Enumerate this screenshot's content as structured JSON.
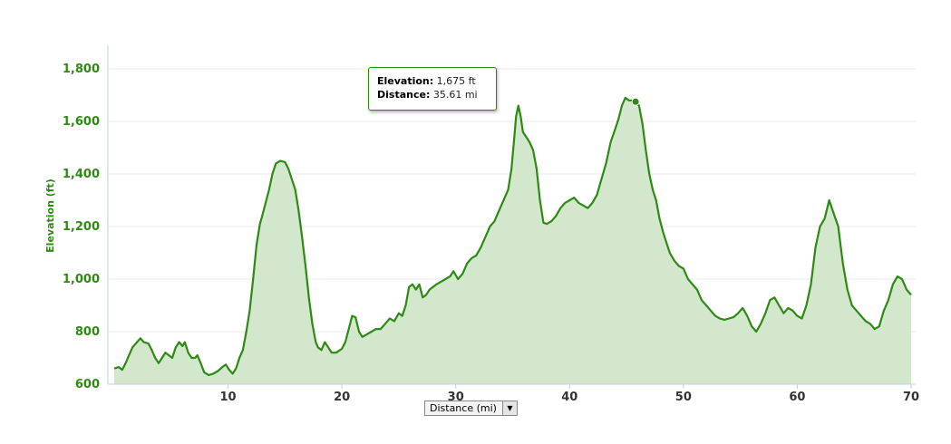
{
  "chart_data": {
    "type": "area",
    "xlabel": "",
    "ylabel": "Elevation (ft)",
    "x_unit_selector": "Distance (mi)",
    "xlim": [
      0,
      70
    ],
    "ylim": [
      600,
      1800
    ],
    "x_ticks": [
      10,
      20,
      30,
      40,
      50,
      60,
      70
    ],
    "y_ticks": [
      600,
      800,
      1000,
      1200,
      1400,
      1600,
      1800
    ],
    "y_tick_labels": [
      "600",
      "800",
      "1,000",
      "1,200",
      "1,400",
      "1,600",
      "1,800"
    ],
    "grid": "horizontal",
    "colors": {
      "line": "#2d8a12",
      "fill": "#d3e7cc",
      "grid": "#e8e8e8",
      "axis": "#c0d0e0"
    },
    "tooltip": {
      "elevation_label": "Elevation:",
      "elevation_value": "1,675 ft",
      "distance_label": "Distance:",
      "distance_value": "35.61 mi",
      "x": 35.61,
      "y": 1675
    },
    "series": [
      {
        "points": [
          [
            0,
            660
          ],
          [
            0.4,
            665
          ],
          [
            0.7,
            655
          ],
          [
            1.0,
            680
          ],
          [
            1.3,
            710
          ],
          [
            1.6,
            740
          ],
          [
            2.0,
            760
          ],
          [
            2.3,
            775
          ],
          [
            2.6,
            760
          ],
          [
            3.0,
            755
          ],
          [
            3.3,
            730
          ],
          [
            3.6,
            700
          ],
          [
            3.9,
            680
          ],
          [
            4.2,
            700
          ],
          [
            4.5,
            720
          ],
          [
            4.8,
            710
          ],
          [
            5.1,
            700
          ],
          [
            5.4,
            740
          ],
          [
            5.7,
            760
          ],
          [
            6.0,
            745
          ],
          [
            6.2,
            760
          ],
          [
            6.5,
            720
          ],
          [
            6.8,
            700
          ],
          [
            7.1,
            700
          ],
          [
            7.3,
            710
          ],
          [
            7.6,
            680
          ],
          [
            7.9,
            645
          ],
          [
            8.3,
            635
          ],
          [
            8.7,
            640
          ],
          [
            9.1,
            650
          ],
          [
            9.5,
            665
          ],
          [
            9.8,
            675
          ],
          [
            10.1,
            655
          ],
          [
            10.4,
            640
          ],
          [
            10.7,
            660
          ],
          [
            11.0,
            700
          ],
          [
            11.3,
            730
          ],
          [
            11.6,
            800
          ],
          [
            11.9,
            880
          ],
          [
            12.2,
            1000
          ],
          [
            12.5,
            1130
          ],
          [
            12.8,
            1210
          ],
          [
            13.0,
            1240
          ],
          [
            13.3,
            1290
          ],
          [
            13.6,
            1340
          ],
          [
            13.9,
            1400
          ],
          [
            14.2,
            1440
          ],
          [
            14.6,
            1450
          ],
          [
            15.0,
            1445
          ],
          [
            15.3,
            1420
          ],
          [
            15.6,
            1380
          ],
          [
            15.9,
            1340
          ],
          [
            16.2,
            1260
          ],
          [
            16.5,
            1160
          ],
          [
            16.8,
            1050
          ],
          [
            17.1,
            930
          ],
          [
            17.4,
            830
          ],
          [
            17.7,
            760
          ],
          [
            17.9,
            740
          ],
          [
            18.2,
            730
          ],
          [
            18.5,
            760
          ],
          [
            18.8,
            740
          ],
          [
            19.1,
            720
          ],
          [
            19.5,
            720
          ],
          [
            20.0,
            735
          ],
          [
            20.3,
            760
          ],
          [
            20.6,
            810
          ],
          [
            20.9,
            860
          ],
          [
            21.2,
            855
          ],
          [
            21.5,
            800
          ],
          [
            21.8,
            780
          ],
          [
            22.2,
            790
          ],
          [
            22.6,
            800
          ],
          [
            23.0,
            810
          ],
          [
            23.4,
            810
          ],
          [
            23.8,
            830
          ],
          [
            24.2,
            850
          ],
          [
            24.6,
            840
          ],
          [
            25.0,
            870
          ],
          [
            25.3,
            860
          ],
          [
            25.6,
            900
          ],
          [
            25.9,
            970
          ],
          [
            26.2,
            980
          ],
          [
            26.5,
            960
          ],
          [
            26.8,
            980
          ],
          [
            27.1,
            930
          ],
          [
            27.4,
            940
          ],
          [
            27.7,
            960
          ],
          [
            28.0,
            970
          ],
          [
            28.3,
            980
          ],
          [
            28.7,
            990
          ],
          [
            29.1,
            1000
          ],
          [
            29.5,
            1010
          ],
          [
            29.8,
            1030
          ],
          [
            30.2,
            1000
          ],
          [
            30.6,
            1020
          ],
          [
            31.0,
            1060
          ],
          [
            31.4,
            1080
          ],
          [
            31.8,
            1090
          ],
          [
            32.2,
            1120
          ],
          [
            32.6,
            1160
          ],
          [
            33.0,
            1200
          ],
          [
            33.4,
            1220
          ],
          [
            33.8,
            1260
          ],
          [
            34.2,
            1300
          ],
          [
            34.6,
            1340
          ],
          [
            34.9,
            1420
          ],
          [
            35.1,
            1520
          ],
          [
            35.3,
            1620
          ],
          [
            35.5,
            1660
          ],
          [
            35.7,
            1620
          ],
          [
            35.9,
            1560
          ],
          [
            36.2,
            1540
          ],
          [
            36.5,
            1520
          ],
          [
            36.8,
            1490
          ],
          [
            37.1,
            1420
          ],
          [
            37.4,
            1300
          ],
          [
            37.7,
            1215
          ],
          [
            38.0,
            1210
          ],
          [
            38.4,
            1220
          ],
          [
            38.8,
            1240
          ],
          [
            39.2,
            1270
          ],
          [
            39.6,
            1290
          ],
          [
            40.0,
            1300
          ],
          [
            40.4,
            1310
          ],
          [
            40.8,
            1290
          ],
          [
            41.2,
            1280
          ],
          [
            41.6,
            1270
          ],
          [
            42.0,
            1290
          ],
          [
            42.4,
            1320
          ],
          [
            42.8,
            1380
          ],
          [
            43.2,
            1440
          ],
          [
            43.6,
            1520
          ],
          [
            44.0,
            1570
          ],
          [
            44.3,
            1610
          ],
          [
            44.6,
            1660
          ],
          [
            44.9,
            1690
          ],
          [
            45.2,
            1680
          ],
          [
            45.5,
            1680
          ],
          [
            45.8,
            1675
          ],
          [
            46.1,
            1660
          ],
          [
            46.4,
            1590
          ],
          [
            46.7,
            1490
          ],
          [
            47.0,
            1400
          ],
          [
            47.3,
            1340
          ],
          [
            47.6,
            1300
          ],
          [
            47.9,
            1230
          ],
          [
            48.2,
            1180
          ],
          [
            48.5,
            1140
          ],
          [
            48.8,
            1100
          ],
          [
            49.2,
            1070
          ],
          [
            49.6,
            1050
          ],
          [
            50.0,
            1040
          ],
          [
            50.4,
            1000
          ],
          [
            50.8,
            980
          ],
          [
            51.2,
            960
          ],
          [
            51.6,
            920
          ],
          [
            52.0,
            900
          ],
          [
            52.4,
            880
          ],
          [
            52.8,
            860
          ],
          [
            53.2,
            850
          ],
          [
            53.6,
            845
          ],
          [
            54.0,
            850
          ],
          [
            54.4,
            855
          ],
          [
            54.8,
            870
          ],
          [
            55.2,
            890
          ],
          [
            55.6,
            860
          ],
          [
            56.0,
            820
          ],
          [
            56.4,
            800
          ],
          [
            56.8,
            830
          ],
          [
            57.2,
            870
          ],
          [
            57.6,
            920
          ],
          [
            58.0,
            930
          ],
          [
            58.4,
            900
          ],
          [
            58.8,
            870
          ],
          [
            59.2,
            890
          ],
          [
            59.6,
            880
          ],
          [
            60.0,
            860
          ],
          [
            60.4,
            850
          ],
          [
            60.8,
            900
          ],
          [
            61.2,
            980
          ],
          [
            61.6,
            1120
          ],
          [
            62.0,
            1200
          ],
          [
            62.4,
            1230
          ],
          [
            62.8,
            1300
          ],
          [
            63.2,
            1250
          ],
          [
            63.6,
            1200
          ],
          [
            64.0,
            1060
          ],
          [
            64.4,
            960
          ],
          [
            64.8,
            900
          ],
          [
            65.2,
            880
          ],
          [
            65.6,
            860
          ],
          [
            66.0,
            840
          ],
          [
            66.4,
            830
          ],
          [
            66.8,
            810
          ],
          [
            67.2,
            820
          ],
          [
            67.6,
            880
          ],
          [
            68.0,
            920
          ],
          [
            68.4,
            980
          ],
          [
            68.8,
            1010
          ],
          [
            69.2,
            1000
          ],
          [
            69.6,
            960
          ],
          [
            70.0,
            940
          ]
        ]
      }
    ]
  }
}
